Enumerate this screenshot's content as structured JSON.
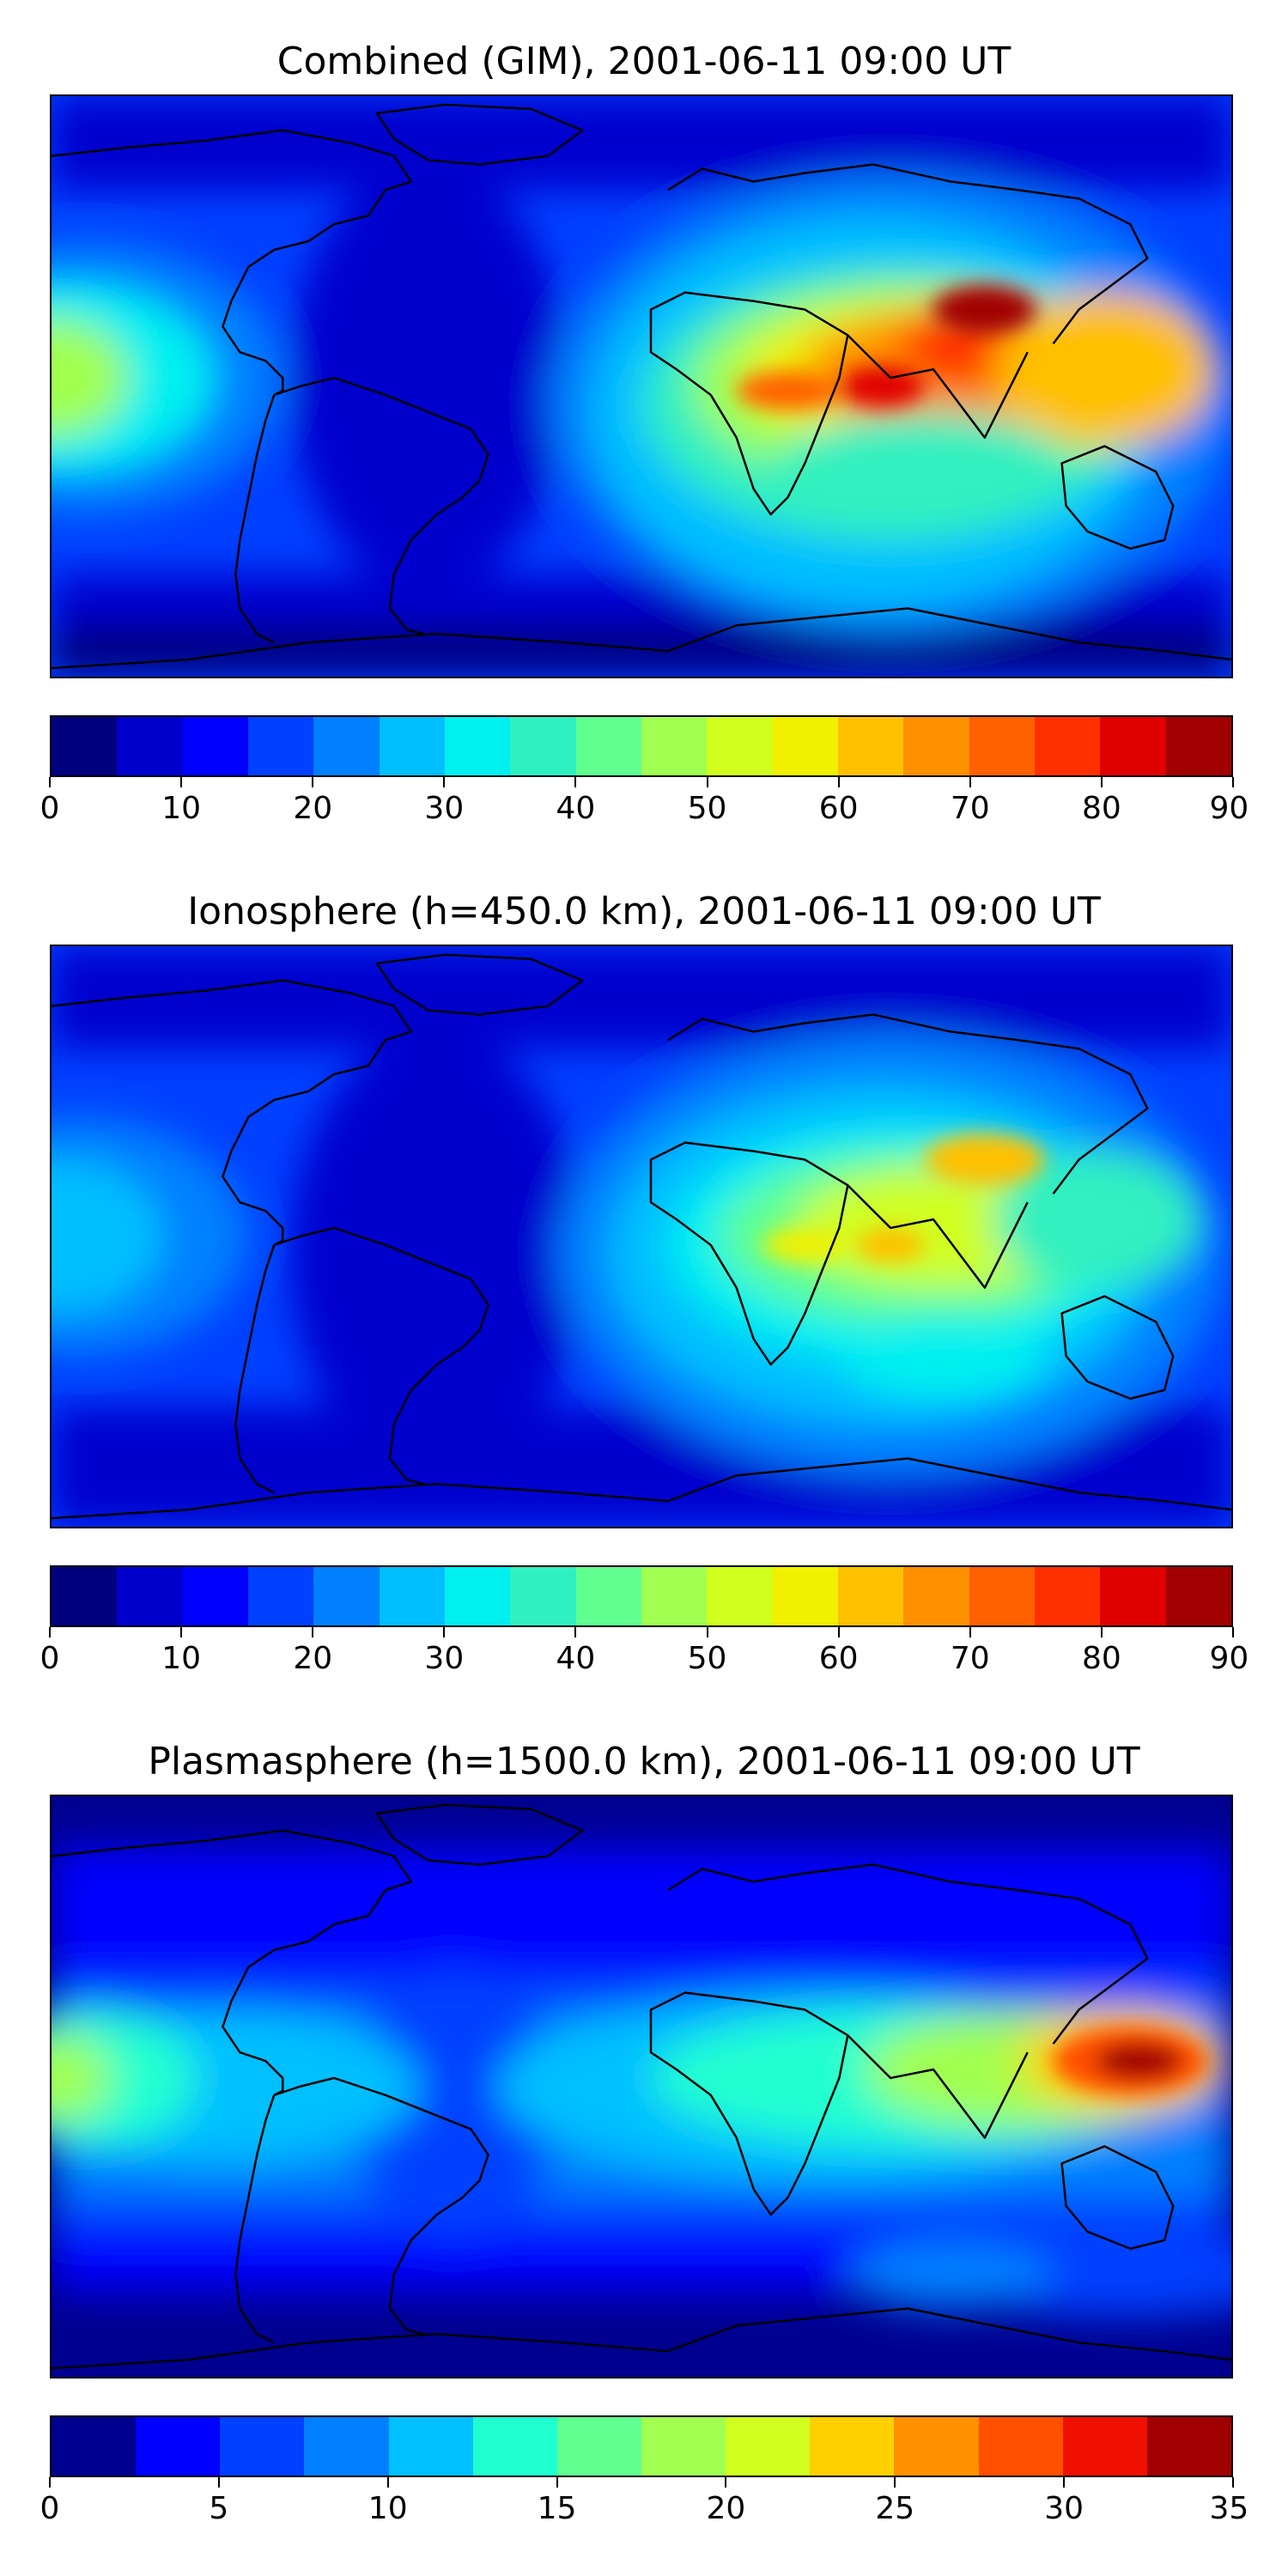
{
  "panels": [
    {
      "title": "Combined (GIM), 2001-06-11 09:00 UT",
      "colorbar": {
        "min": 0,
        "max": 90,
        "step": 5,
        "ticks": [
          "0",
          "10",
          "20",
          "30",
          "40",
          "50",
          "60",
          "70",
          "80",
          "90"
        ],
        "colors": [
          "#00007f",
          "#0000cd",
          "#0000ff",
          "#0040ff",
          "#0080ff",
          "#00bfff",
          "#00f0f0",
          "#30f0c0",
          "#60ff90",
          "#a0ff50",
          "#d0ff20",
          "#f0f000",
          "#ffc000",
          "#ff9000",
          "#ff6000",
          "#ff3000",
          "#e00000",
          "#a00000"
        ]
      }
    },
    {
      "title": "Ionosphere  (h=450.0 km), 2001-06-11 09:00 UT",
      "colorbar": {
        "min": 0,
        "max": 90,
        "step": 5,
        "ticks": [
          "0",
          "10",
          "20",
          "30",
          "40",
          "50",
          "60",
          "70",
          "80",
          "90"
        ],
        "colors": [
          "#00007f",
          "#0000cd",
          "#0000ff",
          "#0040ff",
          "#0080ff",
          "#00bfff",
          "#00f0f0",
          "#30f0c0",
          "#60ff90",
          "#a0ff50",
          "#d0ff20",
          "#f0f000",
          "#ffc000",
          "#ff9000",
          "#ff6000",
          "#ff3000",
          "#e00000",
          "#a00000"
        ]
      }
    },
    {
      "title": "Plasmasphere (h=1500.0 km), 2001-06-11 09:00 UT",
      "colorbar": {
        "min": 0,
        "max": 35,
        "step": 2.5,
        "ticks": [
          "0",
          "5",
          "10",
          "15",
          "20",
          "25",
          "30",
          "35"
        ],
        "colors": [
          "#00008f",
          "#0000ff",
          "#0040ff",
          "#0080ff",
          "#00c0ff",
          "#20ffd0",
          "#60ff90",
          "#a0ff50",
          "#d0ff20",
          "#ffd000",
          "#ff9000",
          "#ff5000",
          "#f01000",
          "#a00000"
        ]
      }
    }
  ]
}
